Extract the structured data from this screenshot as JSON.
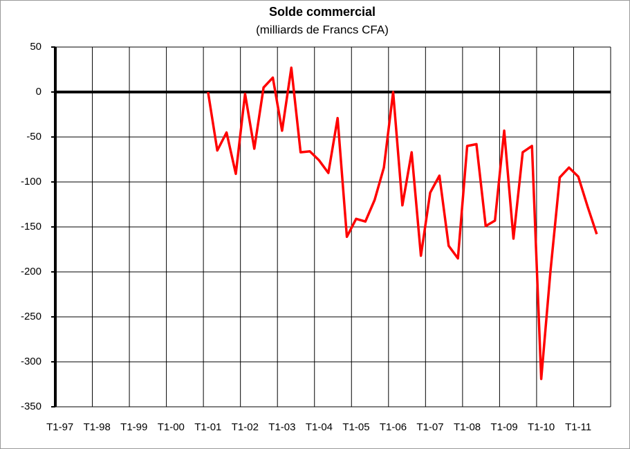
{
  "chart_data": {
    "type": "line",
    "title": "Solde commercial",
    "subtitle": "(milliards de Francs CFA)",
    "categories": [
      "T1-97",
      null,
      null,
      null,
      "T1-98",
      null,
      null,
      null,
      "T1-99",
      null,
      null,
      null,
      "T1-00",
      null,
      null,
      null,
      "T1-01",
      null,
      null,
      null,
      "T1-02",
      null,
      null,
      null,
      "T1-03",
      null,
      null,
      null,
      "T1-04",
      null,
      null,
      null,
      "T1-05",
      null,
      null,
      null,
      "T1-06",
      null,
      null,
      null,
      "T1-07",
      null,
      null,
      null,
      "T1-08",
      null,
      null,
      null,
      "T1-09",
      null,
      null,
      null,
      "T1-10",
      null,
      null,
      null,
      "T1-11",
      null,
      null,
      null
    ],
    "series": [
      {
        "color": "#ff0000",
        "values": [
          null,
          null,
          null,
          null,
          null,
          null,
          null,
          null,
          null,
          null,
          null,
          null,
          null,
          null,
          null,
          null,
          0,
          -65,
          -45,
          -91,
          -2,
          -63,
          5,
          16,
          -43,
          27,
          -67,
          -66,
          -76,
          -90,
          -29,
          -161,
          -141,
          -144,
          -120,
          -84,
          0,
          -126,
          -67,
          -182,
          -112,
          -93,
          -171,
          -185,
          -60,
          -58,
          -149,
          -143,
          -43,
          -163,
          -67,
          -60,
          -319,
          -199,
          -95,
          -84,
          -94,
          -127,
          -158,
          null
        ]
      }
    ],
    "ylim": [
      -350,
      50
    ],
    "yticks": [
      50,
      0,
      -50,
      -100,
      -150,
      -200,
      -250,
      -300,
      -350
    ],
    "grid": true
  }
}
